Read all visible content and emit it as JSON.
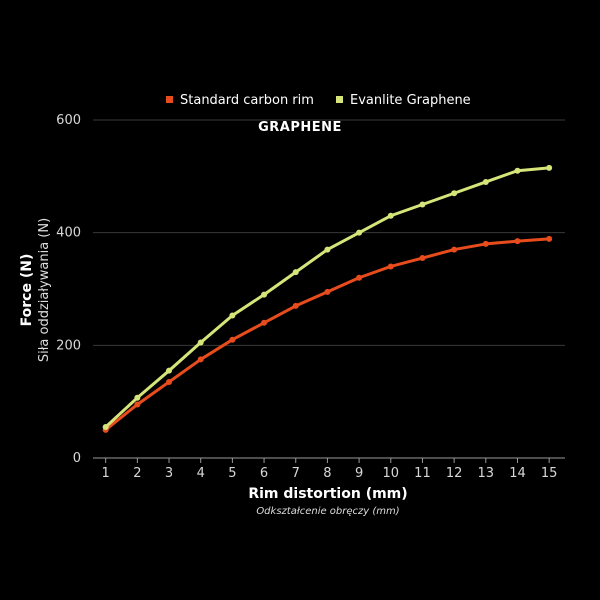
{
  "chart_data": {
    "type": "line",
    "title": "",
    "annotation": "GRAPHENE",
    "xlabel": "Rim distortion (mm)",
    "xlabel_sub": "Odkształcenie obręczy (mm)",
    "ylabel": "Force (N)",
    "ylabel_sub": "Siła oddziaływania (N)",
    "x": [
      1,
      2,
      3,
      4,
      5,
      6,
      7,
      8,
      9,
      10,
      11,
      12,
      13,
      14,
      15
    ],
    "xlim": [
      0.6,
      15.5
    ],
    "ylim": [
      0,
      600
    ],
    "yticks": [
      0,
      200,
      400,
      600
    ],
    "grid": true,
    "legend_position": "top-center",
    "series": [
      {
        "name": "Standard carbon rim",
        "color": "#e84c1c",
        "values": [
          50,
          95,
          135,
          175,
          210,
          240,
          270,
          295,
          320,
          340,
          355,
          370,
          380,
          385,
          389
        ]
      },
      {
        "name": "Evanlite Graphene",
        "color": "#d6e57a",
        "values": [
          55,
          107,
          155,
          205,
          253,
          290,
          330,
          370,
          400,
          430,
          450,
          470,
          490,
          510,
          515
        ]
      }
    ]
  }
}
